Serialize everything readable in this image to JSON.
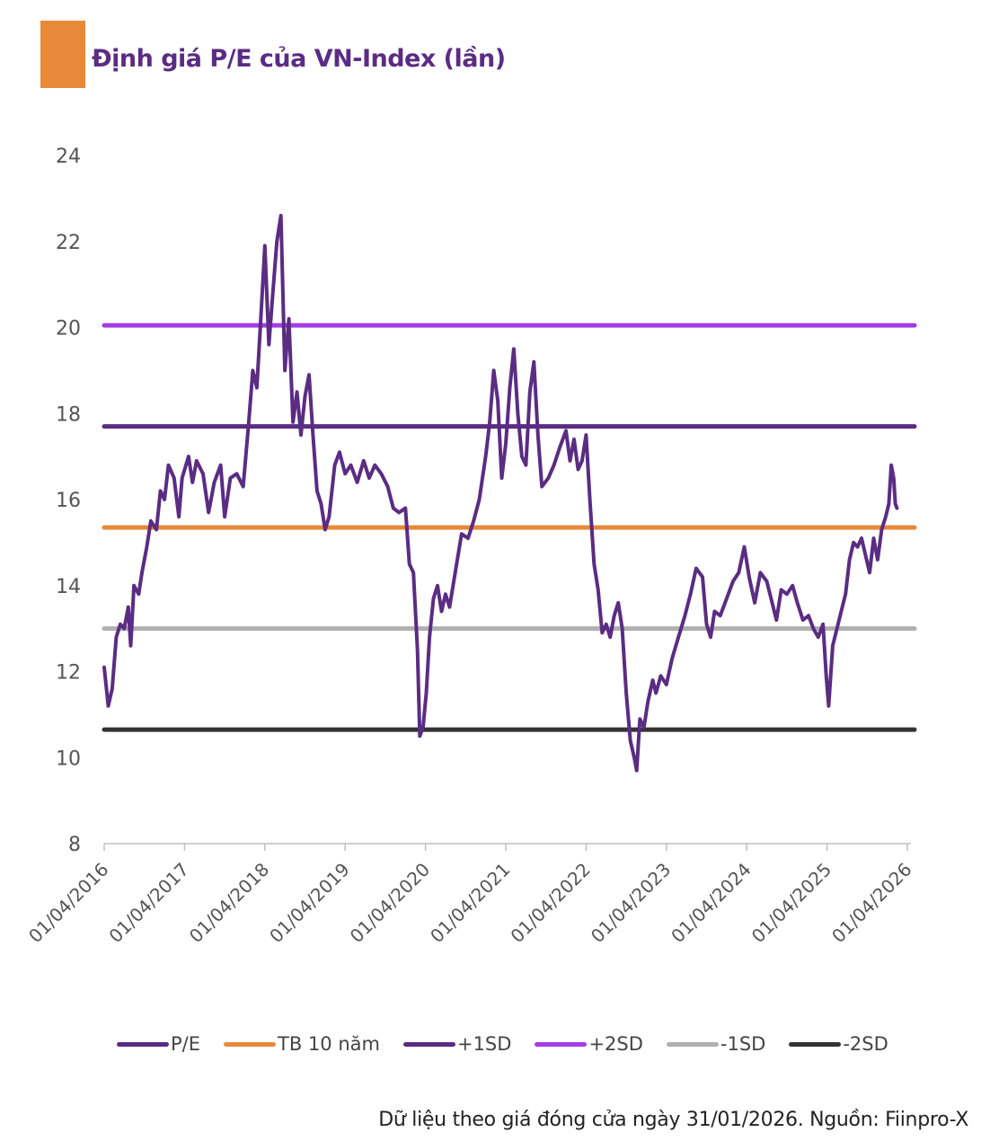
{
  "colors": {
    "title_box": "#E8893A",
    "title_text": "#5B2C83",
    "pe": "#5B2C83",
    "mean": "#E8893A",
    "plus1sd": "#5B2C83",
    "plus2sd": "#A43CE6",
    "minus1sd": "#B0B0B0",
    "minus2sd": "#333333",
    "axis": "#BFBFBF"
  },
  "chart_data": {
    "type": "line",
    "title": "Định giá P/E của VN-Index (lần)",
    "ylim": [
      8,
      24
    ],
    "yticks": [
      8,
      10,
      12,
      14,
      16,
      18,
      20,
      22,
      24
    ],
    "xticks": [
      "01/04/2016",
      "01/04/2017",
      "01/04/2018",
      "01/04/2019",
      "01/04/2020",
      "01/04/2021",
      "01/04/2022",
      "01/04/2023",
      "01/04/2024",
      "01/04/2025",
      "01/04/2026"
    ],
    "xlim": [
      2016.25,
      2026.25
    ],
    "x_end": 2026.33,
    "grid": false,
    "legend_position": "bottom",
    "bands": [
      {
        "name": "TB 10 năm",
        "value": 15.35,
        "color_key": "mean"
      },
      {
        "name": "+1SD",
        "value": 17.7,
        "color_key": "plus1sd"
      },
      {
        "name": "+2SD",
        "value": 20.05,
        "color_key": "plus2sd"
      },
      {
        "name": "-1SD",
        "value": 13.0,
        "color_key": "minus1sd"
      },
      {
        "name": "-2SD",
        "value": 10.65,
        "color_key": "minus2sd"
      }
    ],
    "series": [
      {
        "name": "P/E",
        "color_key": "pe",
        "points": [
          [
            2016.25,
            12.1
          ],
          [
            2016.3,
            11.2
          ],
          [
            2016.35,
            11.6
          ],
          [
            2016.4,
            12.8
          ],
          [
            2016.45,
            13.1
          ],
          [
            2016.5,
            13.0
          ],
          [
            2016.55,
            13.5
          ],
          [
            2016.58,
            12.6
          ],
          [
            2016.62,
            14.0
          ],
          [
            2016.68,
            13.8
          ],
          [
            2016.72,
            14.3
          ],
          [
            2016.78,
            14.9
          ],
          [
            2016.83,
            15.5
          ],
          [
            2016.9,
            15.3
          ],
          [
            2016.95,
            16.2
          ],
          [
            2017.0,
            16.0
          ],
          [
            2017.05,
            16.8
          ],
          [
            2017.12,
            16.5
          ],
          [
            2017.18,
            15.6
          ],
          [
            2017.22,
            16.5
          ],
          [
            2017.3,
            17.0
          ],
          [
            2017.35,
            16.4
          ],
          [
            2017.4,
            16.9
          ],
          [
            2017.48,
            16.6
          ],
          [
            2017.55,
            15.7
          ],
          [
            2017.62,
            16.4
          ],
          [
            2017.7,
            16.8
          ],
          [
            2017.75,
            15.6
          ],
          [
            2017.82,
            16.5
          ],
          [
            2017.9,
            16.6
          ],
          [
            2017.98,
            16.3
          ],
          [
            2018.05,
            17.8
          ],
          [
            2018.1,
            19.0
          ],
          [
            2018.15,
            18.6
          ],
          [
            2018.2,
            20.2
          ],
          [
            2018.25,
            21.9
          ],
          [
            2018.3,
            19.6
          ],
          [
            2018.35,
            20.8
          ],
          [
            2018.4,
            22.0
          ],
          [
            2018.45,
            22.6
          ],
          [
            2018.5,
            19.0
          ],
          [
            2018.55,
            20.2
          ],
          [
            2018.6,
            17.8
          ],
          [
            2018.65,
            18.5
          ],
          [
            2018.7,
            17.5
          ],
          [
            2018.75,
            18.4
          ],
          [
            2018.8,
            18.9
          ],
          [
            2018.85,
            17.5
          ],
          [
            2018.9,
            16.2
          ],
          [
            2018.95,
            15.9
          ],
          [
            2019.0,
            15.3
          ],
          [
            2019.05,
            15.6
          ],
          [
            2019.12,
            16.8
          ],
          [
            2019.18,
            17.1
          ],
          [
            2019.25,
            16.6
          ],
          [
            2019.32,
            16.8
          ],
          [
            2019.4,
            16.4
          ],
          [
            2019.48,
            16.9
          ],
          [
            2019.55,
            16.5
          ],
          [
            2019.62,
            16.8
          ],
          [
            2019.7,
            16.6
          ],
          [
            2019.78,
            16.3
          ],
          [
            2019.85,
            15.8
          ],
          [
            2019.92,
            15.7
          ],
          [
            2020.0,
            15.8
          ],
          [
            2020.05,
            14.5
          ],
          [
            2020.1,
            14.3
          ],
          [
            2020.15,
            12.5
          ],
          [
            2020.18,
            10.5
          ],
          [
            2020.22,
            10.7
          ],
          [
            2020.26,
            11.5
          ],
          [
            2020.3,
            12.8
          ],
          [
            2020.35,
            13.7
          ],
          [
            2020.4,
            14.0
          ],
          [
            2020.45,
            13.4
          ],
          [
            2020.5,
            13.8
          ],
          [
            2020.55,
            13.5
          ],
          [
            2020.62,
            14.3
          ],
          [
            2020.7,
            15.2
          ],
          [
            2020.78,
            15.1
          ],
          [
            2020.85,
            15.5
          ],
          [
            2020.92,
            16.0
          ],
          [
            2021.0,
            17.0
          ],
          [
            2021.05,
            17.8
          ],
          [
            2021.1,
            19.0
          ],
          [
            2021.15,
            18.3
          ],
          [
            2021.2,
            16.5
          ],
          [
            2021.25,
            17.3
          ],
          [
            2021.3,
            18.6
          ],
          [
            2021.35,
            19.5
          ],
          [
            2021.4,
            18.0
          ],
          [
            2021.45,
            17.0
          ],
          [
            2021.5,
            16.8
          ],
          [
            2021.55,
            18.5
          ],
          [
            2021.6,
            19.2
          ],
          [
            2021.65,
            17.5
          ],
          [
            2021.7,
            16.3
          ],
          [
            2021.78,
            16.5
          ],
          [
            2021.85,
            16.8
          ],
          [
            2021.92,
            17.2
          ],
          [
            2022.0,
            17.6
          ],
          [
            2022.05,
            16.9
          ],
          [
            2022.1,
            17.4
          ],
          [
            2022.15,
            16.7
          ],
          [
            2022.2,
            16.9
          ],
          [
            2022.25,
            17.5
          ],
          [
            2022.3,
            15.9
          ],
          [
            2022.35,
            14.5
          ],
          [
            2022.4,
            13.9
          ],
          [
            2022.45,
            12.9
          ],
          [
            2022.5,
            13.1
          ],
          [
            2022.55,
            12.8
          ],
          [
            2022.6,
            13.3
          ],
          [
            2022.65,
            13.6
          ],
          [
            2022.7,
            13.0
          ],
          [
            2022.75,
            11.5
          ],
          [
            2022.8,
            10.4
          ],
          [
            2022.85,
            10.0
          ],
          [
            2022.88,
            9.7
          ],
          [
            2022.92,
            10.9
          ],
          [
            2022.97,
            10.7
          ],
          [
            2023.02,
            11.3
          ],
          [
            2023.08,
            11.8
          ],
          [
            2023.12,
            11.5
          ],
          [
            2023.18,
            11.9
          ],
          [
            2023.25,
            11.7
          ],
          [
            2023.32,
            12.3
          ],
          [
            2023.4,
            12.8
          ],
          [
            2023.48,
            13.3
          ],
          [
            2023.55,
            13.8
          ],
          [
            2023.62,
            14.4
          ],
          [
            2023.7,
            14.2
          ],
          [
            2023.75,
            13.1
          ],
          [
            2023.8,
            12.8
          ],
          [
            2023.85,
            13.4
          ],
          [
            2023.92,
            13.3
          ],
          [
            2024.0,
            13.7
          ],
          [
            2024.08,
            14.1
          ],
          [
            2024.15,
            14.3
          ],
          [
            2024.22,
            14.9
          ],
          [
            2024.28,
            14.2
          ],
          [
            2024.35,
            13.6
          ],
          [
            2024.42,
            14.3
          ],
          [
            2024.5,
            14.1
          ],
          [
            2024.58,
            13.5
          ],
          [
            2024.62,
            13.2
          ],
          [
            2024.68,
            13.9
          ],
          [
            2024.75,
            13.8
          ],
          [
            2024.82,
            14.0
          ],
          [
            2024.88,
            13.6
          ],
          [
            2024.95,
            13.2
          ],
          [
            2025.02,
            13.3
          ],
          [
            2025.08,
            13.0
          ],
          [
            2025.14,
            12.8
          ],
          [
            2025.2,
            13.1
          ],
          [
            2025.24,
            11.9
          ],
          [
            2025.27,
            11.2
          ],
          [
            2025.32,
            12.6
          ],
          [
            2025.4,
            13.2
          ],
          [
            2025.48,
            13.8
          ],
          [
            2025.53,
            14.6
          ],
          [
            2025.58,
            15.0
          ],
          [
            2025.63,
            14.9
          ],
          [
            2025.68,
            15.1
          ],
          [
            2025.73,
            14.7
          ],
          [
            2025.78,
            14.3
          ],
          [
            2025.83,
            15.1
          ],
          [
            2025.88,
            14.6
          ],
          [
            2025.93,
            15.3
          ],
          [
            2025.98,
            15.6
          ],
          [
            2026.02,
            15.9
          ],
          [
            2026.05,
            16.8
          ],
          [
            2026.08,
            16.5
          ],
          [
            2026.1,
            15.9
          ],
          [
            2026.12,
            15.8
          ]
        ]
      }
    ]
  },
  "legend": [
    {
      "label": "P/E",
      "color_key": "pe"
    },
    {
      "label": "TB 10 năm",
      "color_key": "mean"
    },
    {
      "label": "+1SD",
      "color_key": "plus1sd"
    },
    {
      "label": "+2SD",
      "color_key": "plus2sd"
    },
    {
      "label": "-1SD",
      "color_key": "minus1sd"
    },
    {
      "label": "-2SD",
      "color_key": "minus2sd"
    }
  ],
  "source_note": "Dữ liệu theo giá đóng cửa ngày 31/01/2026. Nguồn: Fiinpro-X"
}
